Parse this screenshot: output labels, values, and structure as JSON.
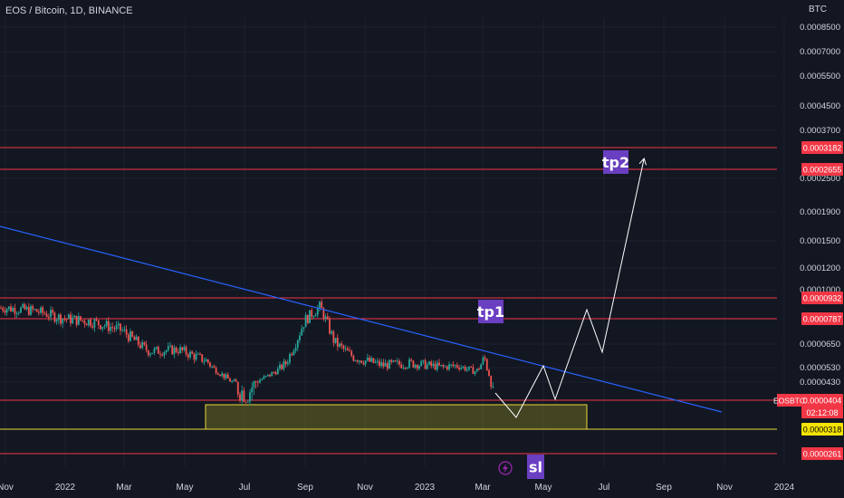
{
  "header": {
    "title": "EOS / Bitcoin, 1D, BINANCE",
    "currency": "BTC"
  },
  "colors": {
    "background": "#131722",
    "grid": "#1c2030",
    "axis_text": "#d1d4dc",
    "level_line": "#f23645",
    "trendline": "#2962ff",
    "zone_fill": "#6b6b22",
    "zone_border": "#e8d83a",
    "label_bg": "#6a3fc1",
    "up_candle": "#26a69a",
    "down_candle": "#ef5350",
    "projection": "#ffffff"
  },
  "chart_data": {
    "type": "candlestick",
    "symbol": "EOSBTC",
    "yscale": "log",
    "ylim": [
      0.00024,
      0.0009
    ],
    "xlim": [
      "2021-10-10",
      "2024-01-01"
    ],
    "x_ticks": [
      "Nov",
      "2022",
      "Mar",
      "May",
      "Jul",
      "Sep",
      "Nov",
      "2023",
      "Mar",
      "May",
      "Jul",
      "Sep",
      "Nov",
      "2024"
    ],
    "y_ticks": [
      "0.0008500",
      "0.0007000",
      "0.0005500",
      "0.0004500",
      "0.0003700",
      "0.0002500",
      "0.0001900",
      "0.0001500",
      "0.0001200",
      "0.0001000",
      "0.0000650",
      "0.0000530",
      "0.0000430"
    ],
    "price_tags": [
      {
        "label": "0.0003182",
        "value": 0.0003182,
        "style": "red"
      },
      {
        "label": "0.0002655",
        "value": 0.0002655,
        "style": "red"
      },
      {
        "label": "0.0000932",
        "value": 9.32e-05,
        "style": "red"
      },
      {
        "label": "0.0000787",
        "value": 7.87e-05,
        "style": "red"
      },
      {
        "label": "0.0000404",
        "value": 4.04e-05,
        "style": "red"
      },
      {
        "label": "0.0000318",
        "value": 3.18e-05,
        "style": "yellow"
      },
      {
        "label": "0.0000261",
        "value": 2.61e-05,
        "style": "red"
      }
    ],
    "symbol_tag": "EOSBTC",
    "countdown": "02:12:08",
    "annotations": [
      {
        "text": "tp2",
        "x": "2023-08-05",
        "y": 0.00029
      },
      {
        "text": "tp1",
        "x": "2023-03-01",
        "y": 8.7e-05
      },
      {
        "text": "sl",
        "x": "2023-04-10",
        "y": 2.55e-05
      }
    ],
    "trendline": {
      "from": [
        "2021-09-20",
        0.000185
      ],
      "to": [
        "2023-12-01",
        3.85e-05
      ]
    },
    "zone": {
      "from": "2022-05-15",
      "to": "2023-06-15",
      "top": 3.95e-05,
      "bottom": 3.18e-05
    },
    "projection_path": [
      [
        "2023-03-10",
        4.05e-05
      ],
      [
        "2023-04-01",
        3.45e-05
      ],
      [
        "2023-04-20",
        5.2e-05
      ],
      [
        "2023-05-05",
        4.25e-05
      ],
      [
        "2023-06-10",
        8.7e-05
      ],
      [
        "2023-06-28",
        6.2e-05
      ],
      [
        "2023-08-20",
        0.000285
      ]
    ],
    "candles": [
      {
        "date": "2021-10-15",
        "close": 8.6e-05
      },
      {
        "date": "2021-11-15",
        "close": 8.4e-05
      },
      {
        "date": "2021-12-15",
        "close": 7.9e-05
      },
      {
        "date": "2022-01-15",
        "close": 7.7e-05
      },
      {
        "date": "2022-02-15",
        "close": 7.2e-05
      },
      {
        "date": "2022-03-15",
        "close": 6.1e-05
      },
      {
        "date": "2022-04-15",
        "close": 6.2e-05
      },
      {
        "date": "2022-05-15",
        "close": 5.6e-05
      },
      {
        "date": "2022-06-10",
        "close": 4.3e-05
      },
      {
        "date": "2022-06-25",
        "close": 4.1e-05
      },
      {
        "date": "2022-07-15",
        "close": 4.6e-05
      },
      {
        "date": "2022-08-05",
        "close": 5.5e-05
      },
      {
        "date": "2022-08-25",
        "close": 7.8e-05
      },
      {
        "date": "2022-09-10",
        "close": 8.7e-05
      },
      {
        "date": "2022-09-25",
        "close": 6.6e-05
      },
      {
        "date": "2022-10-15",
        "close": 5.8e-05
      },
      {
        "date": "2022-11-15",
        "close": 5.4e-05
      },
      {
        "date": "2022-12-15",
        "close": 5.5e-05
      },
      {
        "date": "2023-01-15",
        "close": 5.3e-05
      },
      {
        "date": "2023-02-01",
        "close": 5.4e-05
      },
      {
        "date": "2023-02-20",
        "close": 5e-05
      },
      {
        "date": "2023-03-01",
        "close": 5.8e-05
      },
      {
        "date": "2023-03-10",
        "close": 4.04e-05
      }
    ]
  }
}
